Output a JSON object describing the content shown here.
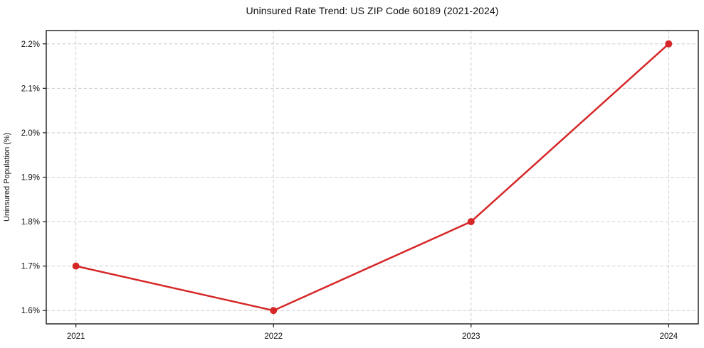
{
  "chart_data": {
    "type": "line",
    "title": "Uninsured Rate Trend: US ZIP Code 60189 (2021-2024)",
    "xlabel": "",
    "ylabel": "Uninsured Population (%)",
    "x": [
      2021,
      2022,
      2023,
      2024
    ],
    "series": [
      {
        "name": "Uninsured Rate",
        "values": [
          1.7,
          1.6,
          1.8,
          2.2
        ],
        "color": "#d62728",
        "marker": "circle"
      }
    ],
    "xlim": [
      2020.85,
      2024.15
    ],
    "ylim": [
      1.57,
      2.23
    ],
    "xticks": [
      2021,
      2022,
      2023,
      2024
    ],
    "xtick_labels": [
      "2021",
      "2022",
      "2023",
      "2024"
    ],
    "yticks": [
      1.6,
      1.7,
      1.8,
      1.9,
      2.0,
      2.1,
      2.2
    ],
    "ytick_labels": [
      "1.6%",
      "1.7%",
      "1.8%",
      "1.9%",
      "2.0%",
      "2.1%",
      "2.2%"
    ],
    "grid": true,
    "grid_style": "dashed",
    "legend": "none",
    "colors": {
      "background": "#ffffff",
      "grid": "#cccccc",
      "spine": "#1a1a1a",
      "text": "#111111",
      "line": "#d62728"
    }
  }
}
